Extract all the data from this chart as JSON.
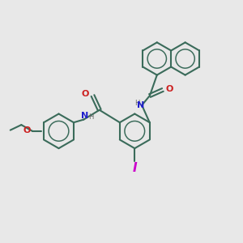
{
  "bg_color": "#e8e8e8",
  "bond_color": "#3a6b5a",
  "atom_colors": {
    "N": "#2020cc",
    "O": "#cc2020",
    "I": "#cc00cc",
    "H": "#666666"
  },
  "figsize": [
    3.0,
    3.0
  ],
  "dpi": 100
}
